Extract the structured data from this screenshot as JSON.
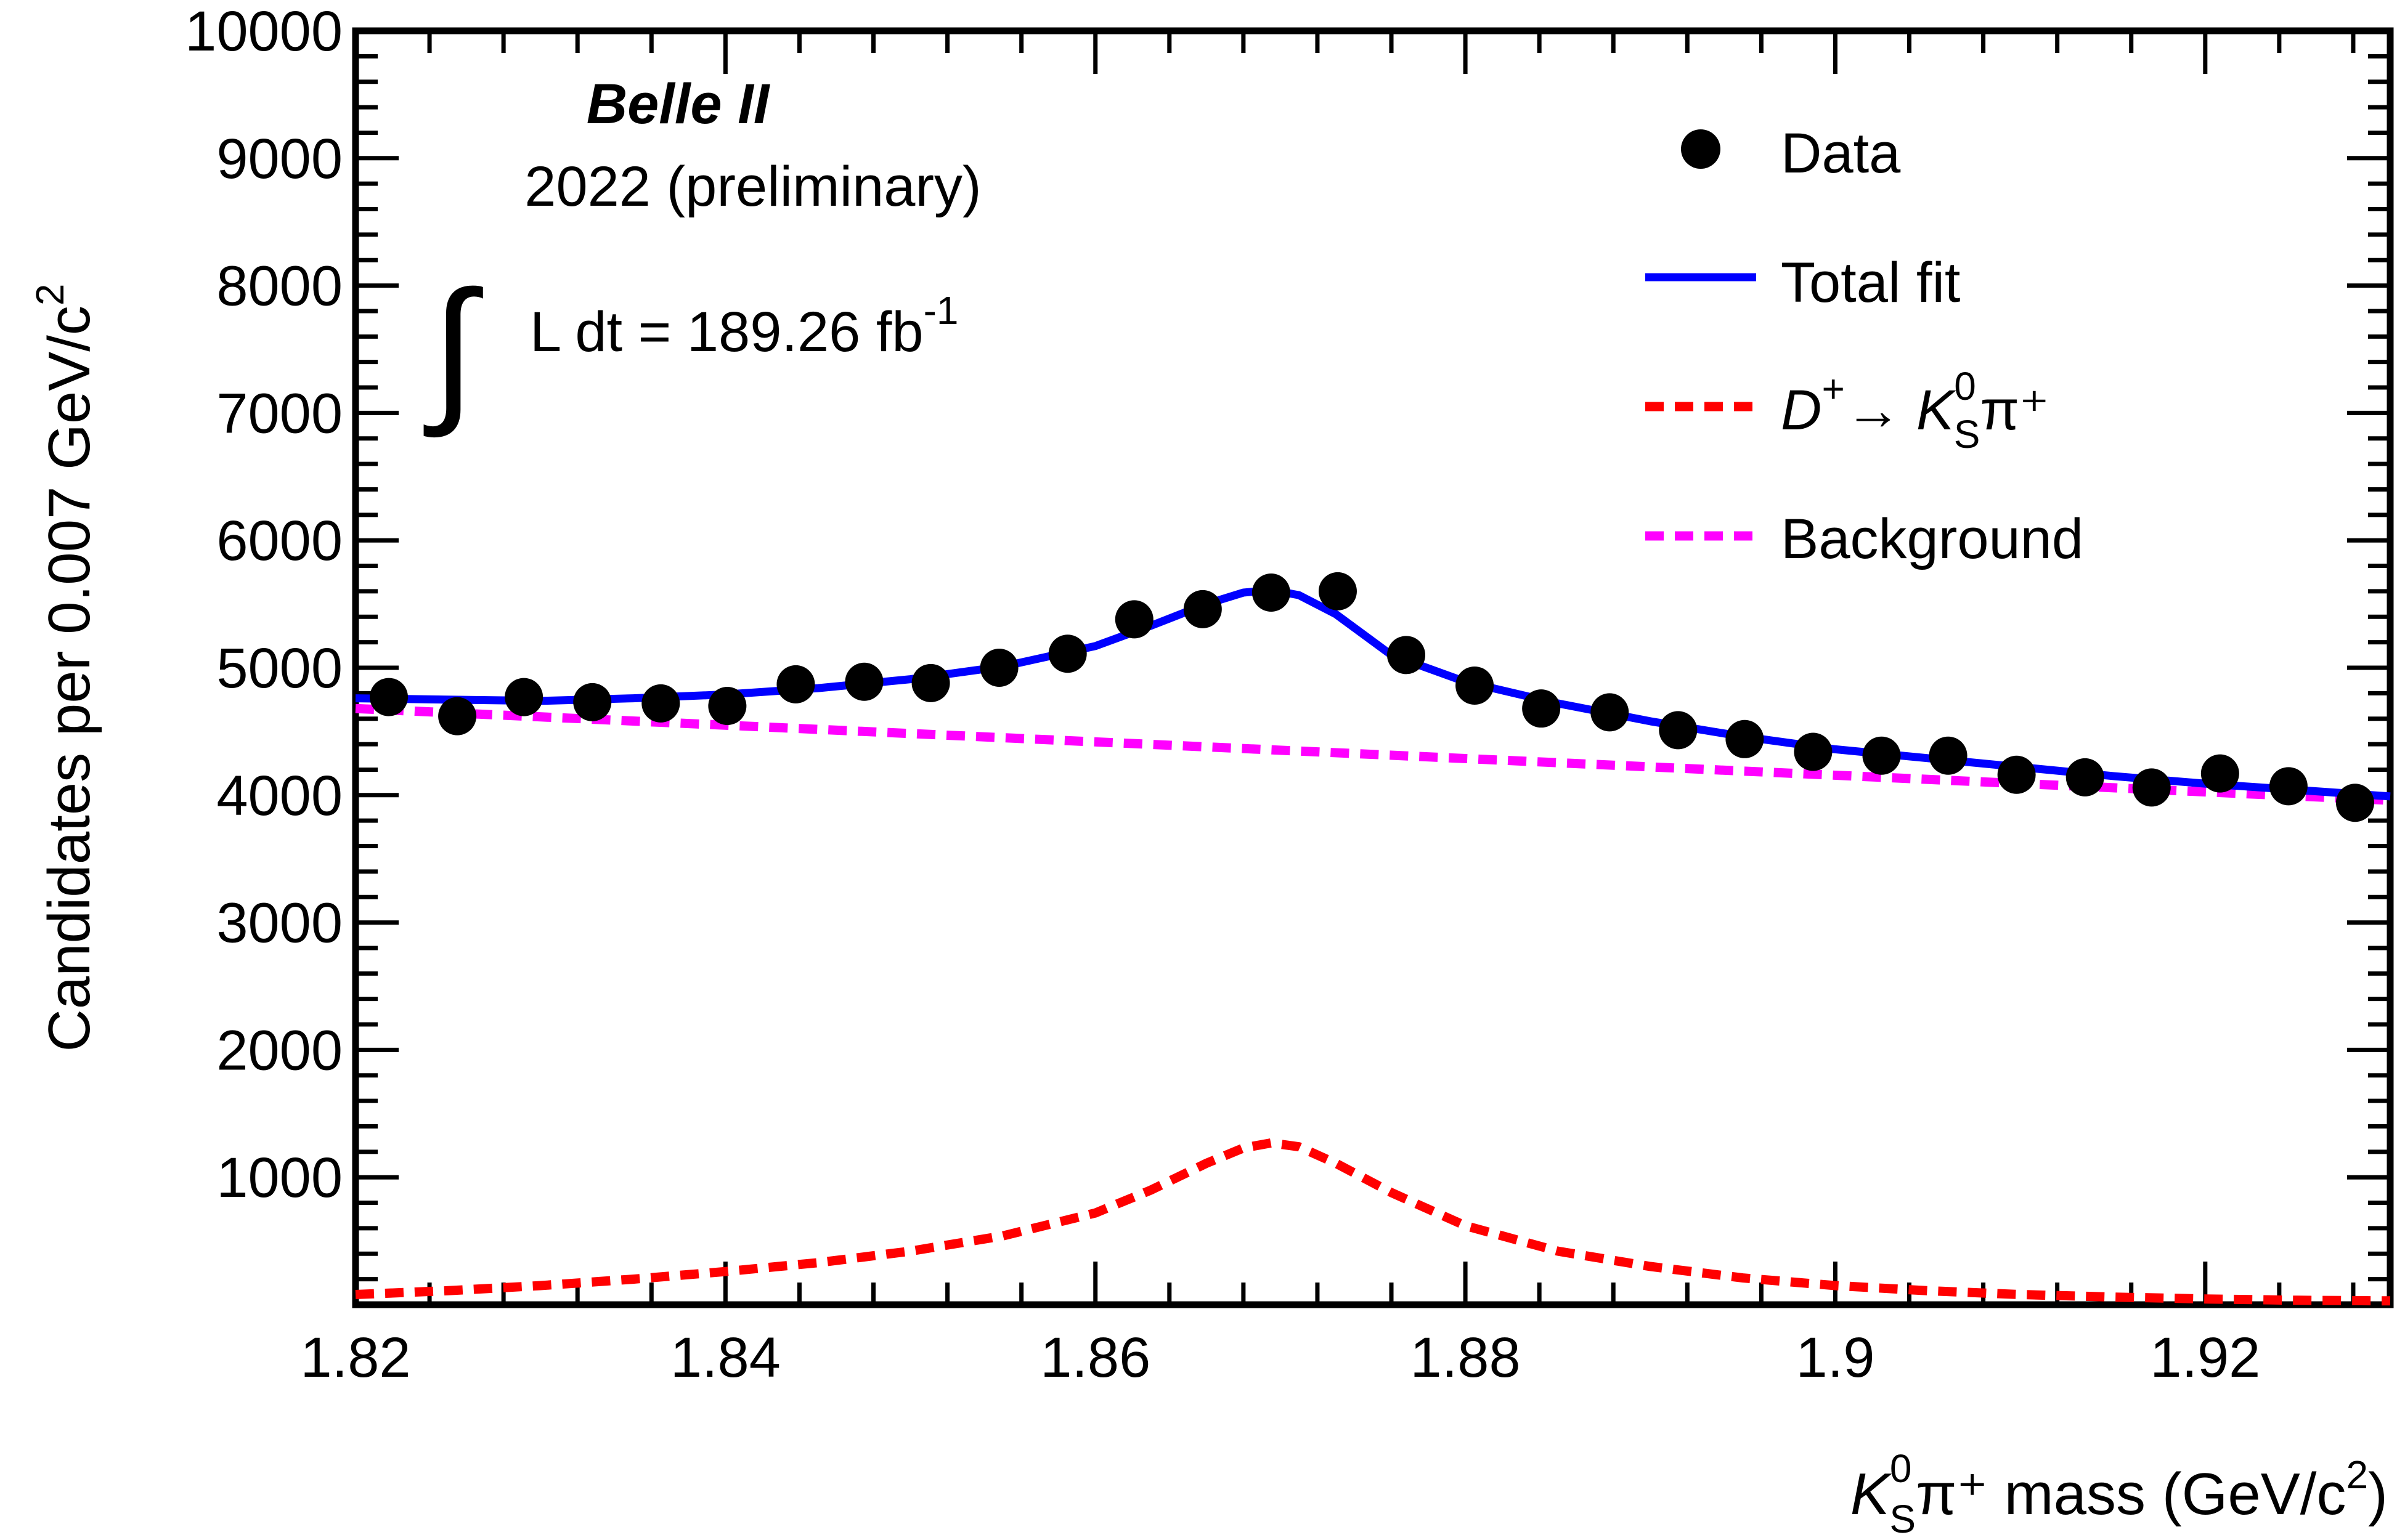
{
  "chart_data": {
    "type": "scatter",
    "xlim": [
      1.82,
      1.93
    ],
    "ylim": [
      0,
      10000
    ],
    "x_ticks": [
      "1.82",
      "1.84",
      "1.86",
      "1.88",
      "1.9",
      "1.92"
    ],
    "y_ticks": [
      "1000",
      "2000",
      "3000",
      "4000",
      "5000",
      "6000",
      "7000",
      "8000",
      "9000",
      "10000"
    ],
    "ylabel": "Candidates per 0.007 GeV/c",
    "ylabel_sup": "2",
    "xlabel": {
      "K": "K",
      "sup": "0",
      "sub": "S",
      "rest": "π⁺ mass (GeV/c",
      "sup2": "2",
      "close": ")"
    },
    "annotations": {
      "experiment": "Belle II",
      "period": "2022 (preliminary)",
      "lumi_integral": "∫",
      "lumi_text": "L dt = 189.26 fb",
      "lumi_sup": "-1"
    },
    "legend": {
      "data": "Data",
      "total_fit": "Total fit",
      "signal_D": "D",
      "signal_sup": "+",
      "signal_arrow": "→",
      "signal_K": "K",
      "signal_K_sup": "0",
      "signal_K_sub": "S",
      "signal_pi": "π⁺",
      "background": "Background"
    },
    "series": [
      {
        "name": "Data",
        "kind": "points",
        "x": [
          1.8218,
          1.8255,
          1.8291,
          1.8328,
          1.8365,
          1.8401,
          1.8438,
          1.8475,
          1.8511,
          1.8548,
          1.8585,
          1.8621,
          1.8658,
          1.8695,
          1.8731,
          1.8768,
          1.8805,
          1.8841,
          1.8878,
          1.8915,
          1.8951,
          1.8988,
          1.9025,
          1.9061,
          1.9098,
          1.9135,
          1.9171,
          1.9208,
          1.9245,
          1.9281
        ],
        "y": [
          4770,
          4620,
          4770,
          4730,
          4720,
          4700,
          4870,
          4890,
          4880,
          5000,
          5110,
          5380,
          5460,
          5590,
          5600,
          5100,
          4860,
          4680,
          4650,
          4510,
          4440,
          4340,
          4310,
          4310,
          4160,
          4140,
          4060,
          4170,
          4070,
          3940
        ]
      },
      {
        "name": "Total fit",
        "kind": "line",
        "color": "#0000ff",
        "x": [
          1.82,
          1.825,
          1.83,
          1.835,
          1.84,
          1.845,
          1.85,
          1.855,
          1.86,
          1.863,
          1.866,
          1.868,
          1.8695,
          1.871,
          1.873,
          1.876,
          1.88,
          1.885,
          1.89,
          1.895,
          1.9,
          1.905,
          1.91,
          1.915,
          1.92,
          1.925,
          1.93
        ],
        "y": [
          4760,
          4750,
          4740,
          4760,
          4790,
          4840,
          4910,
          5010,
          5170,
          5330,
          5500,
          5590,
          5610,
          5570,
          5420,
          5100,
          4890,
          4720,
          4580,
          4460,
          4360,
          4290,
          4220,
          4150,
          4090,
          4040,
          3990
        ]
      },
      {
        "name": "signal",
        "kind": "dashed",
        "color": "#ff0000",
        "x": [
          1.82,
          1.825,
          1.83,
          1.835,
          1.84,
          1.845,
          1.85,
          1.855,
          1.86,
          1.863,
          1.866,
          1.868,
          1.8695,
          1.871,
          1.873,
          1.876,
          1.88,
          1.885,
          1.89,
          1.895,
          1.9,
          1.905,
          1.91,
          1.915,
          1.92,
          1.925,
          1.93
        ],
        "y": [
          80,
          110,
          150,
          200,
          260,
          330,
          420,
          540,
          720,
          900,
          1110,
          1230,
          1270,
          1240,
          1110,
          880,
          620,
          420,
          300,
          210,
          150,
          110,
          80,
          60,
          45,
          35,
          30
        ]
      },
      {
        "name": "Background",
        "kind": "dashed",
        "color": "#ff00ff",
        "x": [
          1.82,
          1.93
        ],
        "y": [
          4680,
          3960
        ]
      }
    ],
    "colors": {
      "data": "#000000",
      "total_fit": "#0000ff",
      "signal": "#ff0000",
      "background": "#ff00ff"
    }
  }
}
